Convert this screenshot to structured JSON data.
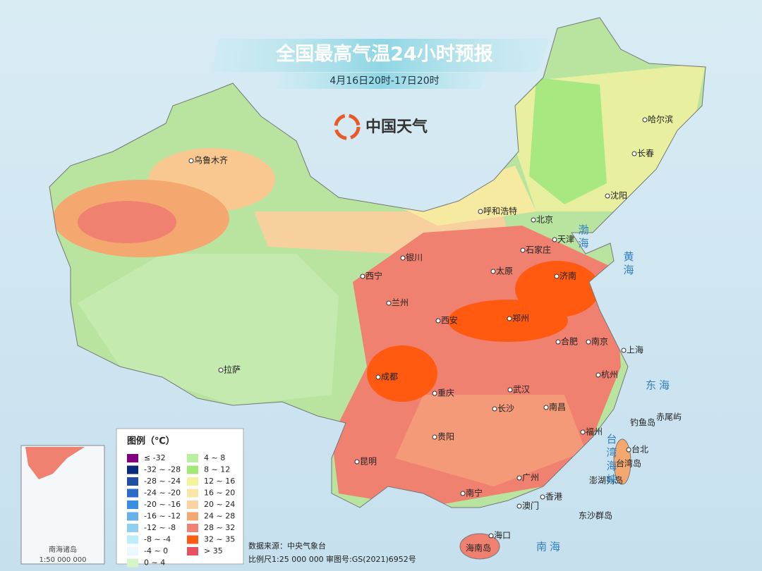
{
  "header": {
    "title": "全国最高气温24小时预报",
    "subtitle": "4月16日20时-17日20时",
    "logo": "中国天气"
  },
  "places": [
    "乌鲁木齐",
    "拉萨",
    "西宁",
    "兰州",
    "银川",
    "呼和浩特",
    "北京",
    "天津",
    "石家庄",
    "太原",
    "济南",
    "郑州",
    "西安",
    "合肥",
    "南京",
    "上海",
    "杭州",
    "武汉",
    "成都",
    "重庆",
    "长沙",
    "南昌",
    "贵阳",
    "昆明",
    "福州",
    "台北",
    "南宁",
    "广州",
    "香港",
    "澳门",
    "海口",
    "沈阳",
    "长春",
    "哈尔滨",
    "台湾岛",
    "钓鱼岛",
    "赤尾屿",
    "澎湖列岛",
    "东沙群岛",
    "海南岛"
  ],
  "seas": {
    "vertical": [
      "渤海",
      "黄海",
      "台湾海峡"
    ],
    "horizontal": [
      "东海",
      "南海"
    ]
  },
  "legend": {
    "title": "图例（℃）",
    "items": [
      {
        "label": "≤ -32",
        "color": "#800080"
      },
      {
        "label": "-32 ~ -28",
        "color": "#0a2a7a"
      },
      {
        "label": "-28 ~ -24",
        "color": "#1f4fa0"
      },
      {
        "label": "-24 ~ -20",
        "color": "#2a6cc8"
      },
      {
        "label": "-20 ~ -16",
        "color": "#3a8ee0"
      },
      {
        "label": "-16 ~ -12",
        "color": "#66b3ea"
      },
      {
        "label": "-12 ~ -8",
        "color": "#8fd0f0"
      },
      {
        "label": "-8 ~ -4",
        "color": "#bdeef8"
      },
      {
        "label": "-4 ~ 0",
        "color": "#eafafc"
      },
      {
        "label": "0 ~ 4",
        "color": "#d6f5c6"
      },
      {
        "label": "4 ~ 8",
        "color": "#b8f0a0"
      },
      {
        "label": "8 ~ 12",
        "color": "#a4e878"
      },
      {
        "label": "12 ~ 16",
        "color": "#f4f49a"
      },
      {
        "label": "16 ~ 20",
        "color": "#fbe6a8"
      },
      {
        "label": "20 ~ 24",
        "color": "#f8d4a4"
      },
      {
        "label": "24 ~ 28",
        "color": "#f4a870"
      },
      {
        "label": "28 ~ 32",
        "color": "#f08070"
      },
      {
        "label": "32 ~ 35",
        "color": "#ff5a10"
      },
      {
        "label": "> 35",
        "color": "#e85060"
      }
    ]
  },
  "footer": {
    "source": "数据来源：中央气象台",
    "scale": "比例尺1:25 000 000",
    "approval": "审图号:GS(2021)6952号"
  },
  "inset": {
    "title": "南海诸岛",
    "scale": "1:50 000 000"
  }
}
